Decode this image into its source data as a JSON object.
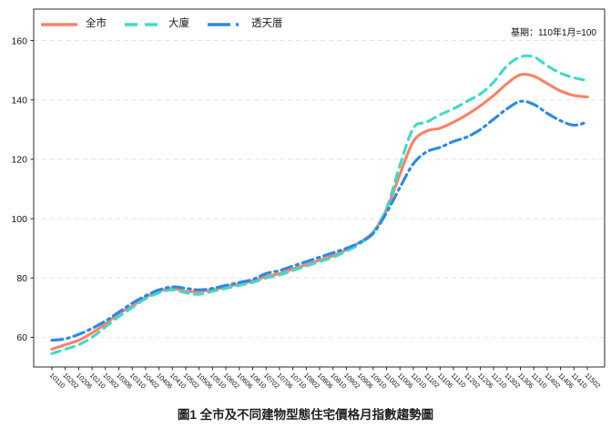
{
  "colors": {
    "series_city": "#fb8266",
    "series_building": "#41dac6",
    "series_townhouse": "#2a89e8",
    "grid": "#e4e4e4",
    "spine": "#2a2a2a",
    "tick_text": "#111111"
  },
  "chart_data": {
    "type": "line",
    "title": "圖1 全市及不同建物型態住宅價格月指數趨勢圖",
    "annotation": "基期：110年1月=100",
    "legend_position": "top-left-inside",
    "grid": "horizontal-dashed",
    "ylim": [
      50,
      170.6
    ],
    "yticks": [
      60,
      80,
      100,
      120,
      140,
      160
    ],
    "x_labels": [
      "10110",
      "10202",
      "10206",
      "10210",
      "10302",
      "10306",
      "10310",
      "10402",
      "10406",
      "10410",
      "10502",
      "10506",
      "10510",
      "10602",
      "10606",
      "10610",
      "10702",
      "10706",
      "10710",
      "10802",
      "10806",
      "10810",
      "10902",
      "10906",
      "10910",
      "11002",
      "11006",
      "11010",
      "11102",
      "11106",
      "11110",
      "11202",
      "11206",
      "11210",
      "11302",
      "11306",
      "11310",
      "11402",
      "11406",
      "11410",
      "11502"
    ],
    "series": [
      {
        "name": "全市",
        "style": "solid",
        "color": "#fb8266",
        "values": [
          56,
          57.5,
          59,
          61.5,
          64.5,
          68,
          70.5,
          73.5,
          75.5,
          76.5,
          75.5,
          75.5,
          76,
          77,
          78,
          79,
          80.5,
          81.5,
          83,
          84.5,
          86,
          87.5,
          89.5,
          92,
          95.5,
          103,
          115,
          126,
          129.5,
          130.5,
          132.5,
          135,
          138,
          141.5,
          145.5,
          148.5,
          148,
          145.5,
          143,
          141.5,
          141
        ]
      },
      {
        "name": "大廈",
        "style": "dashed",
        "color": "#41dac6",
        "values": [
          54.5,
          56,
          57.5,
          60,
          63.5,
          67,
          70,
          73,
          75,
          76,
          75,
          74.5,
          75.5,
          76.5,
          77.5,
          78.5,
          80,
          81,
          82.5,
          84,
          85.5,
          87,
          89,
          91.5,
          95.5,
          103.5,
          118,
          130.5,
          132.5,
          135,
          137,
          139.5,
          142,
          146,
          151.5,
          154.5,
          154.5,
          151.5,
          149,
          147.5,
          146.5
        ]
      },
      {
        "name": "透天厝",
        "style": "dash-dot",
        "color": "#2a89e8",
        "values": [
          59,
          59.5,
          61,
          63,
          65.5,
          68.5,
          71.5,
          74,
          76,
          77,
          76.5,
          76,
          76.5,
          77.5,
          78.5,
          79.5,
          81.5,
          82.5,
          84,
          85.5,
          87,
          88.5,
          90,
          92,
          95,
          102,
          110.5,
          118.5,
          122.5,
          124,
          126,
          127.5,
          130,
          133.5,
          137,
          139.5,
          138.5,
          135.5,
          133,
          131.5,
          132.5
        ]
      }
    ]
  }
}
